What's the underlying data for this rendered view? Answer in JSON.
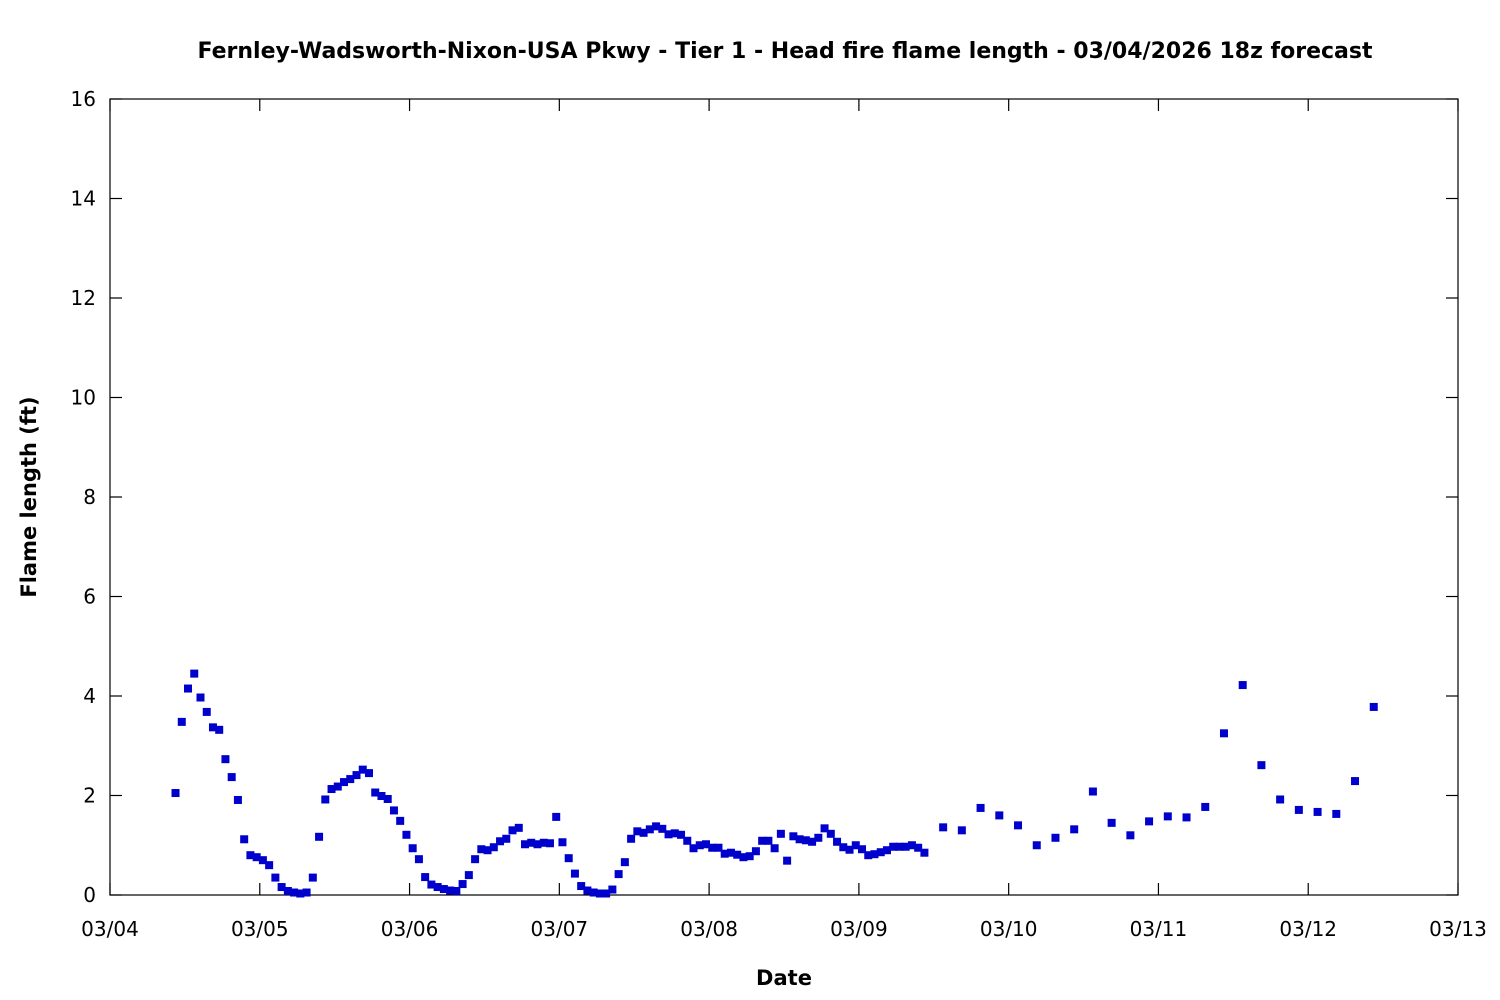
{
  "chart_data": {
    "type": "scatter",
    "title": "Fernley-Wadsworth-Nixon-USA Pkwy - Tier 1 - Head fire flame length - 03/04/2026 18z forecast",
    "xlabel": "Date",
    "ylabel": "Flame length (ft)",
    "x_unit": "days",
    "xlim": [
      "03/04",
      "03/13"
    ],
    "ylim": [
      0,
      16
    ],
    "x_ticks": [
      "03/04",
      "03/05",
      "03/06",
      "03/07",
      "03/08",
      "03/09",
      "03/10",
      "03/11",
      "03/12",
      "03/13"
    ],
    "y_ticks": [
      "0",
      "2",
      "4",
      "6",
      "8",
      "10",
      "12",
      "14",
      "16"
    ],
    "grid": false,
    "marker_color": "#0000cc",
    "marker": "square",
    "series": [
      {
        "x": [
          "03/04 10:30",
          "03/04 11:30",
          "03/04 12:30",
          "03/04 13:30",
          "03/04 14:30",
          "03/04 15:30",
          "03/04 16:30",
          "03/04 17:30",
          "03/04 18:30",
          "03/04 19:30",
          "03/04 20:30",
          "03/04 21:30",
          "03/04 22:30",
          "03/04 23:30",
          "03/05 00:30",
          "03/05 01:30",
          "03/05 02:30",
          "03/05 03:30",
          "03/05 04:30",
          "03/05 05:30",
          "03/05 06:30",
          "03/05 07:30",
          "03/05 08:30",
          "03/05 09:30",
          "03/05 10:30",
          "03/05 11:30",
          "03/05 12:30",
          "03/05 13:30",
          "03/05 14:30",
          "03/05 15:30",
          "03/05 16:30",
          "03/05 17:30",
          "03/05 18:30",
          "03/05 19:30",
          "03/05 20:30",
          "03/05 21:30",
          "03/05 22:30",
          "03/05 23:30",
          "03/06 00:30",
          "03/06 01:30",
          "03/06 02:30",
          "03/06 03:30",
          "03/06 04:30",
          "03/06 05:30",
          "03/06 06:30",
          "03/06 07:30",
          "03/06 08:30",
          "03/06 09:30",
          "03/06 10:30",
          "03/06 11:30",
          "03/06 12:30",
          "03/06 13:30",
          "03/06 14:30",
          "03/06 15:30",
          "03/06 16:30",
          "03/06 17:30",
          "03/06 18:30",
          "03/06 19:30",
          "03/06 20:30",
          "03/06 21:30",
          "03/06 22:30",
          "03/06 23:30",
          "03/07 00:30",
          "03/07 01:30",
          "03/07 02:30",
          "03/07 03:30",
          "03/07 04:30",
          "03/07 05:30",
          "03/07 06:30",
          "03/07 07:30",
          "03/07 08:30",
          "03/07 09:30",
          "03/07 10:30",
          "03/07 11:30",
          "03/07 12:30",
          "03/07 13:30",
          "03/07 14:30",
          "03/07 15:30",
          "03/07 16:30",
          "03/07 17:30",
          "03/07 18:30",
          "03/07 19:30",
          "03/07 20:30",
          "03/07 21:30",
          "03/07 22:30",
          "03/07 23:30",
          "03/08 00:30",
          "03/08 01:30",
          "03/08 02:30",
          "03/08 03:30",
          "03/08 04:30",
          "03/08 05:30",
          "03/08 06:30",
          "03/08 07:30",
          "03/08 08:30",
          "03/08 09:30",
          "03/08 10:30",
          "03/08 11:30",
          "03/08 12:30",
          "03/08 13:30",
          "03/08 14:30",
          "03/08 15:30",
          "03/08 16:30",
          "03/08 17:30",
          "03/08 18:30",
          "03/08 19:30",
          "03/08 20:30",
          "03/08 21:30",
          "03/08 22:30",
          "03/08 23:30",
          "03/09 00:30",
          "03/09 01:30",
          "03/09 02:30",
          "03/09 03:30",
          "03/09 04:30",
          "03/09 05:30",
          "03/09 06:30",
          "03/09 07:30",
          "03/09 08:30",
          "03/09 09:30",
          "03/09 10:30",
          "03/09 13:30",
          "03/09 16:30",
          "03/09 19:30",
          "03/09 22:30",
          "03/10 01:30",
          "03/10 04:30",
          "03/10 07:30",
          "03/10 10:30",
          "03/10 13:30",
          "03/10 16:30",
          "03/10 19:30",
          "03/10 22:30",
          "03/11 01:30",
          "03/11 04:30",
          "03/11 07:30",
          "03/11 10:30",
          "03/11 13:30",
          "03/11 16:30",
          "03/11 19:30",
          "03/11 22:30",
          "03/12 01:30",
          "03/12 04:30",
          "03/12 07:30",
          "03/12 10:30"
        ],
        "y": [
          2.05,
          3.48,
          4.15,
          4.45,
          3.97,
          3.68,
          3.37,
          3.32,
          2.73,
          2.37,
          1.91,
          1.12,
          0.8,
          0.76,
          0.7,
          0.6,
          0.35,
          0.16,
          0.08,
          0.05,
          0.03,
          0.05,
          0.35,
          1.17,
          1.92,
          2.13,
          2.18,
          2.27,
          2.33,
          2.41,
          2.52,
          2.45,
          2.06,
          1.99,
          1.93,
          1.7,
          1.49,
          1.21,
          0.94,
          0.72,
          0.36,
          0.21,
          0.16,
          0.12,
          0.09,
          0.08,
          0.22,
          0.4,
          0.72,
          0.92,
          0.9,
          0.96,
          1.08,
          1.13,
          1.3,
          1.35,
          1.02,
          1.05,
          1.02,
          1.05,
          1.04,
          1.57,
          1.06,
          0.74,
          0.43,
          0.18,
          0.09,
          0.05,
          0.03,
          0.03,
          0.11,
          0.42,
          0.66,
          1.13,
          1.28,
          1.25,
          1.32,
          1.38,
          1.33,
          1.22,
          1.24,
          1.21,
          1.09,
          0.94,
          1.0,
          1.02,
          0.95,
          0.95,
          0.83,
          0.85,
          0.81,
          0.76,
          0.78,
          0.88,
          1.09,
          1.09,
          0.94,
          1.23,
          0.69,
          1.18,
          1.12,
          1.1,
          1.07,
          1.15,
          1.34,
          1.23,
          1.07,
          0.96,
          0.91,
          1.0,
          0.92,
          0.8,
          0.82,
          0.86,
          0.9,
          0.97,
          0.97,
          0.97,
          1.0,
          0.95,
          0.85,
          1.36,
          1.3,
          1.75,
          1.6,
          1.4,
          1.0,
          1.15,
          1.32,
          2.08,
          1.45,
          1.2,
          1.48,
          1.58,
          1.56,
          1.77,
          3.25,
          4.22,
          2.61,
          1.92,
          1.71,
          1.67,
          1.63,
          2.29,
          3.78
        ]
      }
    ]
  }
}
